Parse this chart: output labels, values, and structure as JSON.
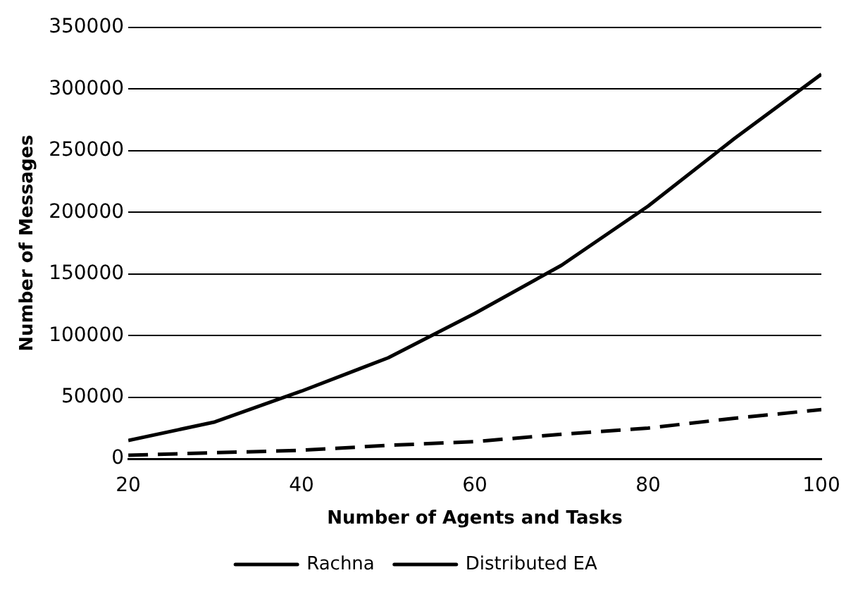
{
  "chart_data": {
    "type": "line",
    "xlabel": "Number of Agents and Tasks",
    "ylabel": "Number of Messages",
    "x": [
      20,
      30,
      40,
      50,
      60,
      70,
      80,
      90,
      100
    ],
    "series": [
      {
        "name": "Rachna",
        "color": "#000000",
        "line_style": "solid",
        "values": [
          15000,
          30000,
          55000,
          82000,
          118000,
          157000,
          205000,
          260000,
          312000
        ]
      },
      {
        "name": "Distributed EA",
        "color": "#000000",
        "line_style": "dashed",
        "values": [
          3000,
          5000,
          7000,
          11000,
          14000,
          20000,
          25000,
          33000,
          40000
        ]
      }
    ],
    "xlim": [
      20,
      100
    ],
    "xticks": [
      20,
      40,
      60,
      80,
      100
    ],
    "ylim": [
      0,
      350000
    ],
    "yticks": [
      0,
      50000,
      100000,
      150000,
      200000,
      250000,
      300000,
      350000
    ],
    "grid": "y",
    "legend": "bottom",
    "marker": "none"
  }
}
